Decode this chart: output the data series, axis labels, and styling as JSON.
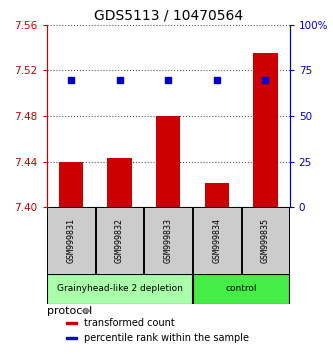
{
  "title": "GDS5113 / 10470564",
  "samples": [
    "GSM999831",
    "GSM999832",
    "GSM999833",
    "GSM999834",
    "GSM999835"
  ],
  "bar_values": [
    7.44,
    7.443,
    7.48,
    7.421,
    7.535
  ],
  "bar_baseline": 7.4,
  "bar_color": "#cc0000",
  "blue_values": [
    70,
    70,
    70,
    70,
    70
  ],
  "blue_color": "#0000cc",
  "ylim_left": [
    7.4,
    7.56
  ],
  "yticks_left": [
    7.4,
    7.44,
    7.48,
    7.52,
    7.56
  ],
  "ylim_right": [
    0,
    100
  ],
  "yticks_right": [
    0,
    25,
    50,
    75,
    100
  ],
  "groups": [
    {
      "label": "Grainyhead-like 2 depletion",
      "indices": [
        0,
        1,
        2
      ],
      "color": "#aaffaa"
    },
    {
      "label": "control",
      "indices": [
        3,
        4
      ],
      "color": "#44ee44"
    }
  ],
  "protocol_label": "protocol",
  "legend_items": [
    {
      "color": "#cc0000",
      "label": "transformed count"
    },
    {
      "color": "#0000cc",
      "label": "percentile rank within the sample"
    }
  ],
  "dotted_color": "#555555",
  "bg_color": "#ffffff",
  "sample_box_color": "#cccccc",
  "left_axis_color": "#cc0000",
  "right_axis_color": "#0000cc"
}
